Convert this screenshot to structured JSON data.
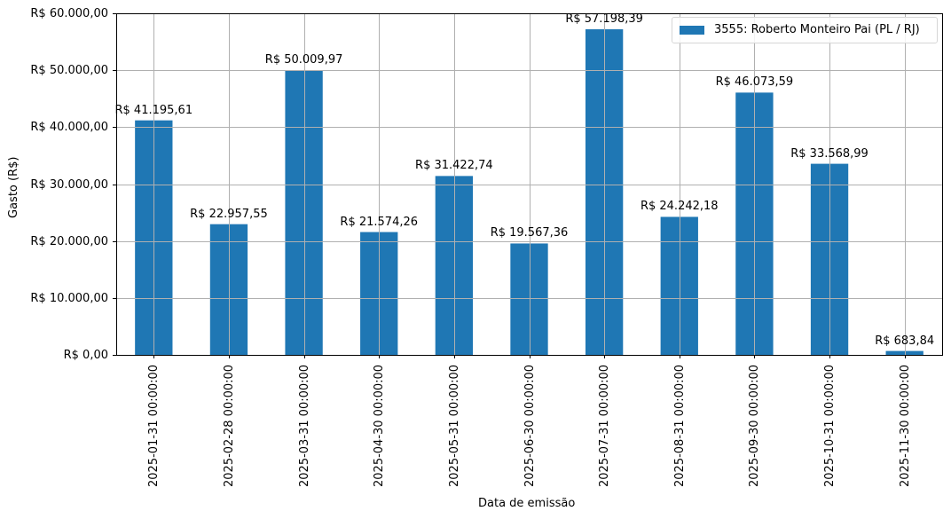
{
  "chart_data": {
    "type": "bar",
    "title": "",
    "xlabel": "Data de emissão",
    "ylabel": "Gasto (R$)",
    "ylim": [
      0,
      60000
    ],
    "grid": true,
    "legend_position": "upper right",
    "bar_color": "#1f77b4",
    "categories": [
      "2025-01-31 00:00:00",
      "2025-02-28 00:00:00",
      "2025-03-31 00:00:00",
      "2025-04-30 00:00:00",
      "2025-05-31 00:00:00",
      "2025-06-30 00:00:00",
      "2025-07-31 00:00:00",
      "2025-08-31 00:00:00",
      "2025-09-30 00:00:00",
      "2025-10-31 00:00:00",
      "2025-11-30 00:00:00"
    ],
    "series": [
      {
        "name": "3555: Roberto Monteiro Pai (PL / RJ)",
        "values": [
          41195.61,
          22957.55,
          50009.97,
          21574.26,
          31422.74,
          19567.36,
          57198.39,
          24242.18,
          46073.59,
          33568.99,
          683.84
        ],
        "labels": [
          "R$ 41.195,61",
          "R$ 22.957,55",
          "R$ 50.009,97",
          "R$ 21.574,26",
          "R$ 31.422,74",
          "R$ 19.567,36",
          "R$ 57.198,39",
          "R$ 24.242,18",
          "R$ 46.073,59",
          "R$ 33.568,99",
          "R$ 683,84"
        ]
      }
    ],
    "yticks": [
      0,
      10000,
      20000,
      30000,
      40000,
      50000,
      60000
    ],
    "ytick_labels": [
      "R$ 0,00",
      "R$ 10.000,00",
      "R$ 20.000,00",
      "R$ 30.000,00",
      "R$ 40.000,00",
      "R$ 50.000,00",
      "R$ 60.000,00"
    ]
  }
}
